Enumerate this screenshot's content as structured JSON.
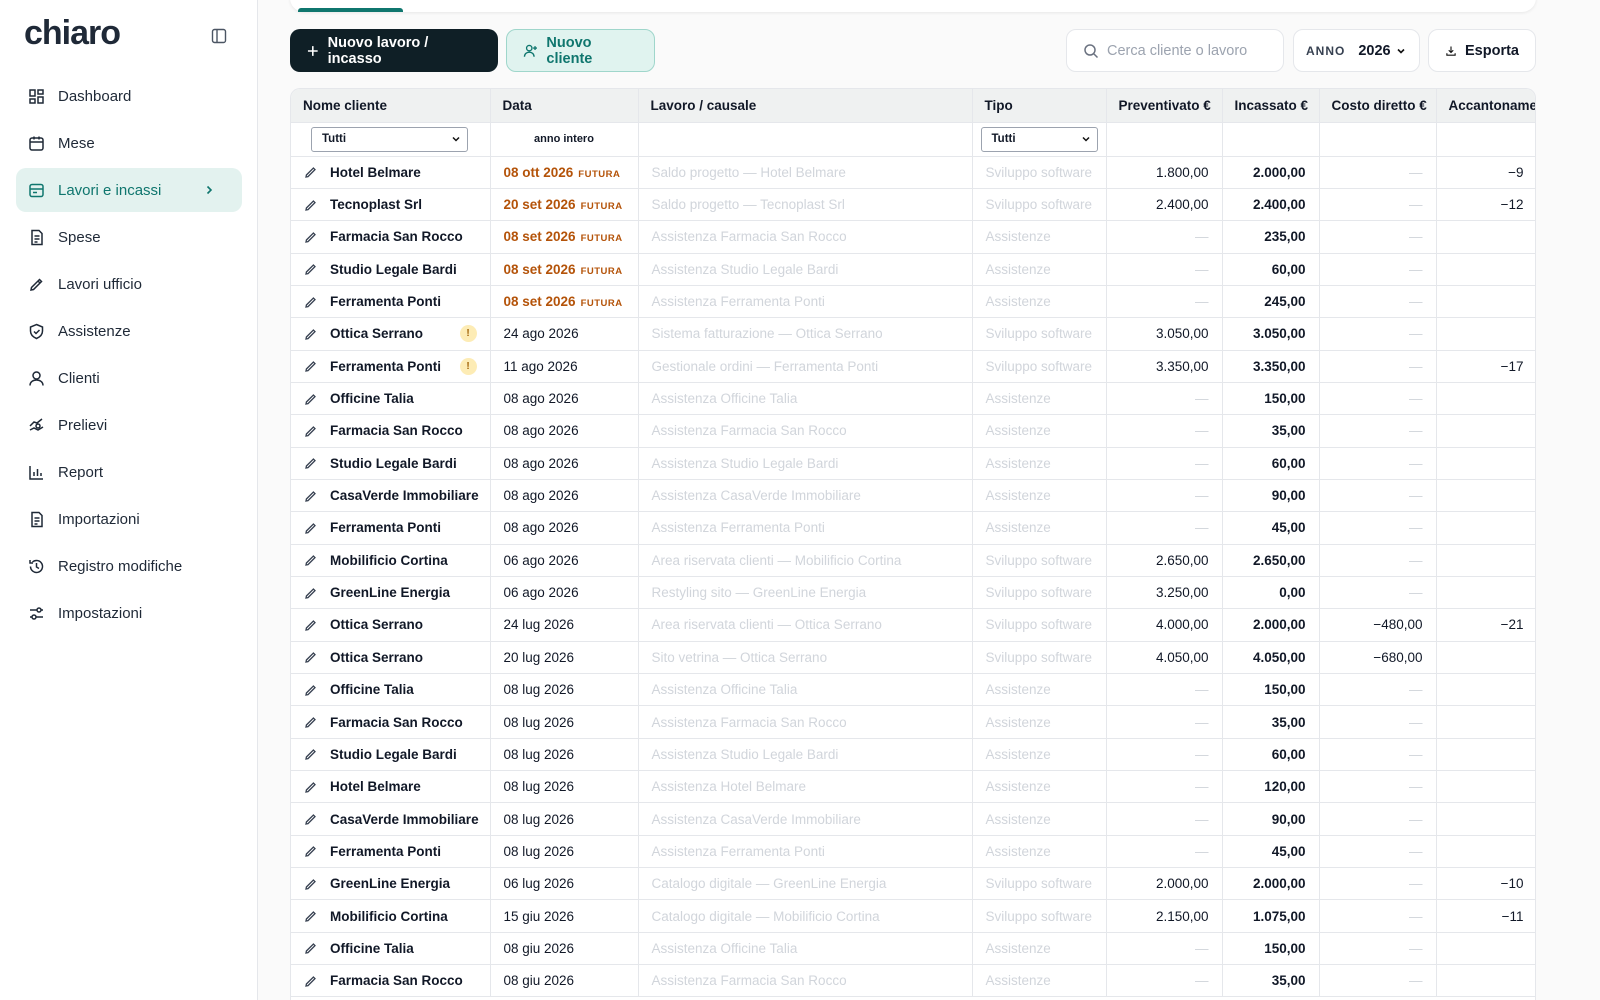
{
  "sidebar": {
    "logo": "chiaro",
    "nav": [
      {
        "label": "Dashboard",
        "icon": "grid"
      },
      {
        "label": "Mese",
        "icon": "cal"
      },
      {
        "label": "Lavori e incassi",
        "icon": "box",
        "active": true
      },
      {
        "label": "Spese",
        "icon": "doc"
      },
      {
        "label": "Lavori ufficio",
        "icon": "pen"
      },
      {
        "label": "Assistenze",
        "icon": "shield"
      },
      {
        "label": "Clienti",
        "icon": "user"
      },
      {
        "label": "Prelievi",
        "icon": "cash"
      },
      {
        "label": "Report",
        "icon": "chart"
      },
      {
        "label": "Importazioni",
        "icon": "doc"
      },
      {
        "label": "Registro modifiche",
        "icon": "hist"
      },
      {
        "label": "Impostazioni",
        "icon": "set"
      }
    ]
  },
  "toolbar": {
    "new_job": "Nuovo lavoro / incasso",
    "new_client": "Nuovo cliente",
    "search_placeholder": "Cerca cliente o lavoro",
    "year_label": "ANNO",
    "year": "2026",
    "export": "Esporta"
  },
  "table": {
    "columns": [
      "Nome cliente",
      "Data",
      "Lavoro / causale",
      "Tipo",
      "Preventivato €",
      "Incassato €",
      "Costo diretto €",
      "Accantonamento"
    ],
    "filters": {
      "cliente": "Tutti",
      "data": "anno intero",
      "tipo": "Tutti"
    },
    "rows": [
      {
        "cliente": "Hotel Belmare",
        "data": "08 ott 2026",
        "stato": "FUTURA",
        "lavoro": "Saldo progetto — Hotel Belmare",
        "tipo": "Sviluppo software",
        "preventivato": "1.800,00",
        "incassato": "2.000,00",
        "costo": "—",
        "accantonamento": "−9"
      },
      {
        "cliente": "Tecnoplast Srl",
        "data": "20 set 2026",
        "stato": "FUTURA",
        "lavoro": "Saldo progetto — Tecnoplast Srl",
        "tipo": "Sviluppo software",
        "preventivato": "2.400,00",
        "incassato": "2.400,00",
        "costo": "—",
        "accantonamento": "−12"
      },
      {
        "cliente": "Farmacia San Rocco",
        "data": "08 set 2026",
        "stato": "FUTURA",
        "lavoro": "Assistenza Farmacia San Rocco",
        "tipo": "Assistenze",
        "preventivato": "—",
        "incassato": "235,00",
        "costo": "—"
      },
      {
        "cliente": "Studio Legale Bardi",
        "data": "08 set 2026",
        "stato": "FUTURA",
        "lavoro": "Assistenza Studio Legale Bardi",
        "tipo": "Assistenze",
        "preventivato": "—",
        "incassato": "60,00",
        "costo": "—"
      },
      {
        "cliente": "Ferramenta Ponti",
        "data": "08 set 2026",
        "stato": "FUTURA",
        "lavoro": "Assistenza Ferramenta Ponti",
        "tipo": "Assistenze",
        "preventivato": "—",
        "incassato": "245,00",
        "costo": "—"
      },
      {
        "cliente": "Ottica Serrano",
        "alert": "!",
        "data": "24 ago 2026",
        "lavoro": "Sistema fatturazione — Ottica Serrano",
        "tipo": "Sviluppo software",
        "preventivato": "3.050,00",
        "incassato": "3.050,00",
        "costo": "—"
      },
      {
        "cliente": "Ferramenta Ponti",
        "alert": "!",
        "data": "11 ago 2026",
        "lavoro": "Gestionale ordini — Ferramenta Ponti",
        "tipo": "Sviluppo software",
        "preventivato": "3.350,00",
        "incassato": "3.350,00",
        "costo": "—",
        "accantonamento": "−17"
      },
      {
        "cliente": "Officine Talia",
        "data": "08 ago 2026",
        "lavoro": "Assistenza Officine Talia",
        "tipo": "Assistenze",
        "preventivato": "—",
        "incassato": "150,00",
        "costo": "—"
      },
      {
        "cliente": "Farmacia San Rocco",
        "data": "08 ago 2026",
        "lavoro": "Assistenza Farmacia San Rocco",
        "tipo": "Assistenze",
        "preventivato": "—",
        "incassato": "35,00",
        "costo": "—"
      },
      {
        "cliente": "Studio Legale Bardi",
        "data": "08 ago 2026",
        "lavoro": "Assistenza Studio Legale Bardi",
        "tipo": "Assistenze",
        "preventivato": "—",
        "incassato": "60,00",
        "costo": "—"
      },
      {
        "cliente": "CasaVerde Immobiliare",
        "data": "08 ago 2026",
        "lavoro": "Assistenza CasaVerde Immobiliare",
        "tipo": "Assistenze",
        "preventivato": "—",
        "incassato": "90,00",
        "costo": "—"
      },
      {
        "cliente": "Ferramenta Ponti",
        "data": "08 ago 2026",
        "lavoro": "Assistenza Ferramenta Ponti",
        "tipo": "Assistenze",
        "preventivato": "—",
        "incassato": "45,00",
        "costo": "—"
      },
      {
        "cliente": "Mobilificio Cortina",
        "data": "06 ago 2026",
        "lavoro": "Area riservata clienti — Mobilificio Cortina",
        "tipo": "Sviluppo software",
        "preventivato": "2.650,00",
        "incassato": "2.650,00",
        "costo": "—"
      },
      {
        "cliente": "GreenLine Energia",
        "data": "06 ago 2026",
        "lavoro": "Restyling sito — GreenLine Energia",
        "tipo": "Sviluppo software",
        "preventivato": "3.250,00",
        "incassato": "0,00",
        "costo": "—"
      },
      {
        "cliente": "Ottica Serrano",
        "data": "24 lug 2026",
        "lavoro": "Area riservata clienti — Ottica Serrano",
        "tipo": "Sviluppo software",
        "preventivato": "4.000,00",
        "incassato": "2.000,00",
        "costo": "−480,00",
        "accantonamento": "−21"
      },
      {
        "cliente": "Ottica Serrano",
        "data": "20 lug 2026",
        "lavoro": "Sito vetrina — Ottica Serrano",
        "tipo": "Sviluppo software",
        "preventivato": "4.050,00",
        "incassato": "4.050,00",
        "costo": "−680,00"
      },
      {
        "cliente": "Officine Talia",
        "data": "08 lug 2026",
        "lavoro": "Assistenza Officine Talia",
        "tipo": "Assistenze",
        "preventivato": "—",
        "incassato": "150,00",
        "costo": "—"
      },
      {
        "cliente": "Farmacia San Rocco",
        "data": "08 lug 2026",
        "lavoro": "Assistenza Farmacia San Rocco",
        "tipo": "Assistenze",
        "preventivato": "—",
        "incassato": "35,00",
        "costo": "—"
      },
      {
        "cliente": "Studio Legale Bardi",
        "data": "08 lug 2026",
        "lavoro": "Assistenza Studio Legale Bardi",
        "tipo": "Assistenze",
        "preventivato": "—",
        "incassato": "60,00",
        "costo": "—"
      },
      {
        "cliente": "Hotel Belmare",
        "data": "08 lug 2026",
        "lavoro": "Assistenza Hotel Belmare",
        "tipo": "Assistenze",
        "preventivato": "—",
        "incassato": "120,00",
        "costo": "—"
      },
      {
        "cliente": "CasaVerde Immobiliare",
        "data": "08 lug 2026",
        "lavoro": "Assistenza CasaVerde Immobiliare",
        "tipo": "Assistenze",
        "preventivato": "—",
        "incassato": "90,00",
        "costo": "—"
      },
      {
        "cliente": "Ferramenta Ponti",
        "data": "08 lug 2026",
        "lavoro": "Assistenza Ferramenta Ponti",
        "tipo": "Assistenze",
        "preventivato": "—",
        "incassato": "45,00",
        "costo": "—"
      },
      {
        "cliente": "GreenLine Energia",
        "data": "06 lug 2026",
        "lavoro": "Catalogo digitale — GreenLine Energia",
        "tipo": "Sviluppo software",
        "preventivato": "2.000,00",
        "incassato": "2.000,00",
        "costo": "—",
        "accantonamento": "−10"
      },
      {
        "cliente": "Mobilificio Cortina",
        "data": "15 giu 2026",
        "lavoro": "Catalogo digitale — Mobilificio Cortina",
        "tipo": "Sviluppo software",
        "preventivato": "2.150,00",
        "incassato": "1.075,00",
        "costo": "—",
        "accantonamento": "−11"
      },
      {
        "cliente": "Officine Talia",
        "data": "08 giu 2026",
        "lavoro": "Assistenza Officine Talia",
        "tipo": "Assistenze",
        "preventivato": "—",
        "incassato": "150,00",
        "costo": "—"
      },
      {
        "cliente": "Farmacia San Rocco",
        "data": "08 giu 2026",
        "lavoro": "Assistenza Farmacia San Rocco",
        "tipo": "Assistenze",
        "preventivato": "—",
        "incassato": "35,00",
        "costo": "—"
      }
    ]
  }
}
